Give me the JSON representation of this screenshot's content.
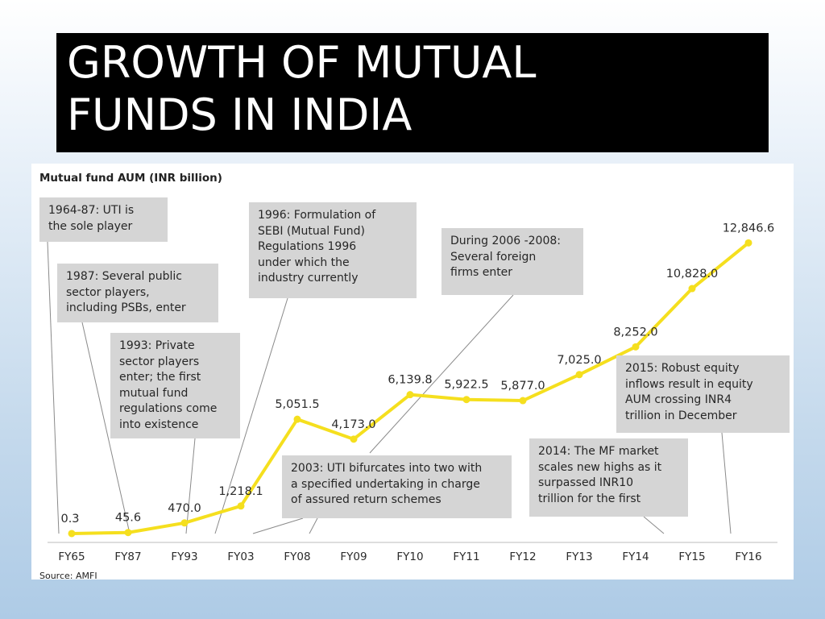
{
  "slide": {
    "title": "GROWTH OF MUTUAL\nFUNDS IN INDIA"
  },
  "chart_data": {
    "type": "line",
    "title": "Mutual fund AUM (INR billion)",
    "source": "Source: AMFI",
    "categories": [
      "FY65",
      "FY87",
      "FY93",
      "FY03",
      "FY08",
      "FY09",
      "FY10",
      "FY11",
      "FY12",
      "FY13",
      "FY14",
      "FY15",
      "FY16"
    ],
    "series": [
      {
        "values": [
          0.3,
          45.6,
          470.0,
          1218.1,
          5051.5,
          4173.0,
          6139.8,
          5922.5,
          5877.0,
          7025.0,
          8252.0,
          10828.0,
          12846.6
        ],
        "labels": [
          "0.3",
          "45.6",
          "470.0",
          "1,218.1",
          "5,051.5",
          "4,173.0",
          "6,139.8",
          "5,922.5",
          "5,877.0",
          "7,025.0",
          "8,252.0",
          "10,828.0",
          "12,846.6"
        ],
        "color": "#f5df1e"
      }
    ],
    "ylim": [
      0,
      13500
    ],
    "grid": false,
    "annotations": [
      {
        "id": "uti-sole",
        "text": "1964-87: UTI is\nthe sole player"
      },
      {
        "id": "public-sector",
        "text": "1987: Several  public\nsector players,\nincluding PSBs,  enter"
      },
      {
        "id": "private-sector",
        "text": "1993: Private\nsector players\nenter;  the first\nmutual fund\nregulations  come\ninto existence"
      },
      {
        "id": "sebi",
        "text": "1996: Formulation of\nSEBI (Mutual Fund)\nRegulations 1996\nunder which the\nindustry currently"
      },
      {
        "id": "foreign",
        "text": "During 2006 -2008:\nSeveral foreign\nfirms  enter"
      },
      {
        "id": "uti-bifurcates",
        "text": "2003: UTI bifurcates   into two with\na specified undertaking in charge\nof assured return schemes"
      },
      {
        "id": "inr10",
        "text": "2014: The MF market\nscales new highs as it\nsurpassed INR10\ntrillion  for the first"
      },
      {
        "id": "equity",
        "text": "2015: Robust equity\ninflows result in equity\nAUM crossing INR4\ntrillion in December"
      }
    ]
  }
}
